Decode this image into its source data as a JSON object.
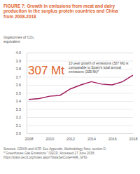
{
  "chart_data": {
    "type": "line",
    "title": "FIGURE 7: Growth in emissions from meat and dairy production in the surplus protein countries and China from 2008-2018",
    "y_label": "Gigatonnes of CO₂ equivalent",
    "x": [
      2008,
      2009,
      2010,
      2011,
      2012,
      2013,
      2014,
      2015,
      2016,
      2017,
      2018
    ],
    "series": [
      {
        "name": "Emissions",
        "color": "#a0195e",
        "values": [
          3.42,
          3.43,
          3.46,
          3.47,
          3.55,
          3.6,
          3.64,
          3.61,
          3.6,
          3.64,
          3.72
        ]
      }
    ],
    "xlim": [
      2008,
      2018
    ],
    "xticks": [
      2008,
      2010,
      2012,
      2014,
      2016,
      2018
    ],
    "ylim": [
      3.0,
      4.0
    ],
    "yticks": [
      {
        "value": 3.0,
        "label": "3.0"
      },
      3.1,
      3.2,
      3.3,
      3.4,
      3.5,
      3.6,
      3.7,
      3.8,
      3.9,
      {
        "value": 4.0,
        "label": "4.0"
      }
    ],
    "grid": true,
    "annotations": [
      "307 Mt",
      "10 year growth of emissions (307 Mt) is comparable to Spain’s total annual emissions (335 Mt)*"
    ],
    "notes": [
      "Sources: GRAIN and IATP. See Appendix, Methodology Note, section D.",
      "*“Greenhouse Gas Emissions.” OECD. Accessed 17 June 2018, https://stats.oecd.org/Index.aspx?DataSetCode=AIR_GHG"
    ]
  }
}
